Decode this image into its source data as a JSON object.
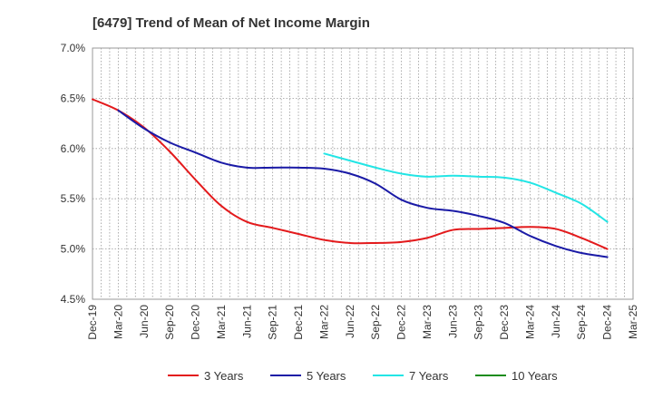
{
  "chart_data": {
    "type": "line",
    "title": "[6479]  Trend of Mean of Net Income Margin",
    "xlabel": "",
    "ylabel": "",
    "x_ticks": [
      "Dec-19",
      "Mar-20",
      "Jun-20",
      "Sep-20",
      "Dec-20",
      "Mar-21",
      "Jun-21",
      "Sep-21",
      "Dec-21",
      "Mar-22",
      "Jun-22",
      "Sep-22",
      "Dec-22",
      "Mar-23",
      "Jun-23",
      "Sep-23",
      "Dec-23",
      "Mar-24",
      "Jun-24",
      "Sep-24",
      "Dec-24",
      "Mar-25"
    ],
    "y_ticks": [
      "4.5%",
      "5.0%",
      "5.5%",
      "6.0%",
      "6.5%",
      "7.0%"
    ],
    "ylim": [
      4.5,
      7.0
    ],
    "grid": true,
    "legend_position": "bottom",
    "series": [
      {
        "name": "3 Years",
        "color": "#e31a1c",
        "x": [
          "Dec-19",
          "Mar-20",
          "Jun-20",
          "Sep-20",
          "Dec-20",
          "Mar-21",
          "Jun-21",
          "Sep-21",
          "Dec-21",
          "Mar-22",
          "Jun-22",
          "Sep-22",
          "Dec-22",
          "Mar-23",
          "Jun-23",
          "Sep-23",
          "Dec-23",
          "Mar-24",
          "Jun-24",
          "Sep-24",
          "Dec-24"
        ],
        "values": [
          6.49,
          6.38,
          6.21,
          5.97,
          5.69,
          5.43,
          5.27,
          5.21,
          5.15,
          5.09,
          5.06,
          5.06,
          5.07,
          5.11,
          5.19,
          5.2,
          5.21,
          5.22,
          5.2,
          5.11,
          5.0
        ]
      },
      {
        "name": "5 Years",
        "color": "#1a1aa6",
        "x": [
          "Mar-20",
          "Jun-20",
          "Sep-20",
          "Dec-20",
          "Mar-21",
          "Jun-21",
          "Sep-21",
          "Dec-21",
          "Mar-22",
          "Jun-22",
          "Sep-22",
          "Dec-22",
          "Mar-23",
          "Jun-23",
          "Sep-23",
          "Dec-23",
          "Mar-24",
          "Jun-24",
          "Sep-24",
          "Dec-24"
        ],
        "values": [
          6.38,
          6.2,
          6.06,
          5.96,
          5.86,
          5.81,
          5.81,
          5.81,
          5.8,
          5.75,
          5.65,
          5.49,
          5.41,
          5.38,
          5.33,
          5.26,
          5.13,
          5.03,
          4.96,
          4.92
        ]
      },
      {
        "name": "7 Years",
        "color": "#22e5e5",
        "x": [
          "Mar-22",
          "Jun-22",
          "Sep-22",
          "Dec-22",
          "Mar-23",
          "Jun-23",
          "Sep-23",
          "Dec-23",
          "Mar-24",
          "Jun-24",
          "Sep-24",
          "Dec-24"
        ],
        "values": [
          5.95,
          5.88,
          5.81,
          5.75,
          5.72,
          5.73,
          5.72,
          5.71,
          5.66,
          5.56,
          5.45,
          5.27
        ]
      },
      {
        "name": "10 Years",
        "color": "#1a8c1a",
        "x": [],
        "values": []
      }
    ]
  }
}
